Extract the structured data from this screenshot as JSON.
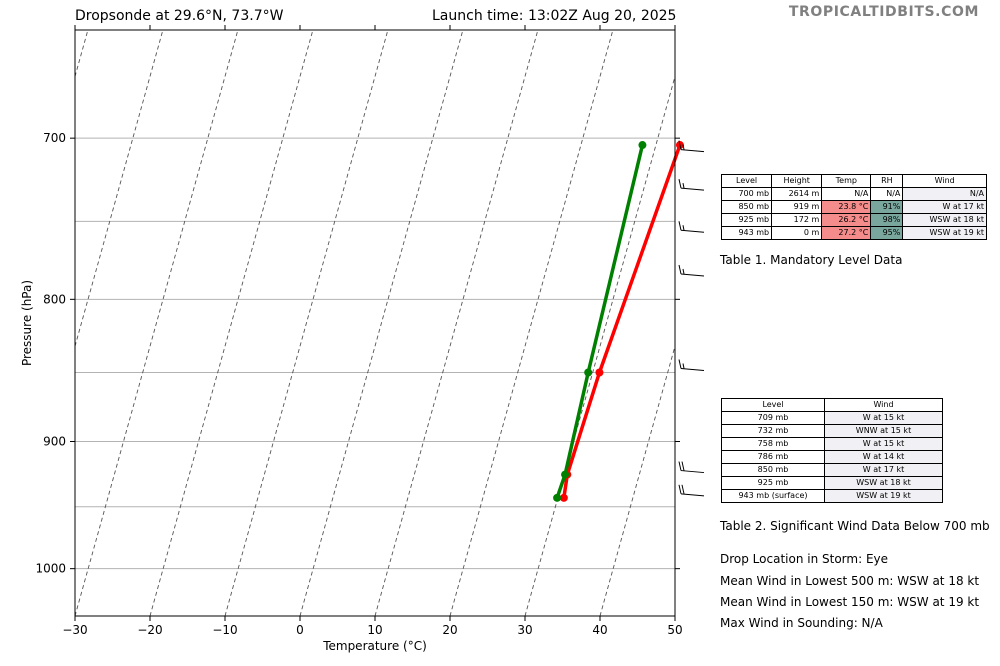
{
  "header": {
    "left_title": "Dropsonde at 29.6°N, 73.7°W",
    "right_title": "Launch time: 13:02Z Aug 20, 2025",
    "brand": "TROPICALTIDBITS.COM"
  },
  "chart_data": {
    "type": "line",
    "xlabel": "Temperature (°C)",
    "ylabel": "Pressure (hPa)",
    "xlim": [
      -30,
      50
    ],
    "ylim": [
      1040,
      640
    ],
    "y_scale": "log",
    "xticks": [
      -30,
      -20,
      -10,
      0,
      10,
      20,
      30,
      40,
      50
    ],
    "yticks": [
      700,
      800,
      900,
      1000
    ],
    "grid": "horizontal isobars at 700, 750, 800, 850, 900, 950, 1000 hPa; dashed skewed isotherms",
    "series": [
      {
        "color": "#ff0000",
        "points": [
          {
            "p": 943,
            "t": 30.8
          },
          {
            "p": 925,
            "t": 30.4
          },
          {
            "p": 850,
            "t": 30.9
          },
          {
            "p": 704,
            "t": 33.2
          }
        ]
      },
      {
        "color": "#008000",
        "points": [
          {
            "p": 943,
            "t": 29.9
          },
          {
            "p": 925,
            "t": 30.1
          },
          {
            "p": 850,
            "t": 29.4
          },
          {
            "p": 704,
            "t": 28.2
          }
        ]
      }
    ],
    "wind_barbs": [
      {
        "p": 709,
        "barbs": 1.5
      },
      {
        "p": 732,
        "barbs": 1.5
      },
      {
        "p": 758,
        "barbs": 1.5
      },
      {
        "p": 786,
        "barbs": 1.5
      },
      {
        "p": 850,
        "barbs": 1.5
      },
      {
        "p": 925,
        "barbs": 2
      },
      {
        "p": 943,
        "barbs": 2
      }
    ]
  },
  "table1": {
    "caption": "Table 1. Mandatory Level Data",
    "headers": [
      "Level",
      "Height",
      "Temp",
      "RH",
      "Wind"
    ],
    "rows": [
      [
        "700 mb",
        "2614 m",
        "N/A",
        "N/A",
        "N/A"
      ],
      [
        "850 mb",
        "919 m",
        "23.8 °C",
        "91%",
        "W at 17 kt"
      ],
      [
        "925 mb",
        "172 m",
        "26.2 °C",
        "98%",
        "WSW at 18 kt"
      ],
      [
        "943 mb",
        "0 m",
        "27.2 °C",
        "95%",
        "WSW at 19 kt"
      ]
    ],
    "temp_color": "#f58c8c",
    "rh_color": "#7aa79d"
  },
  "table2": {
    "caption": "Table 2. Significant Wind Data Below 700 mb",
    "headers": [
      "Level",
      "Wind"
    ],
    "rows": [
      [
        "709 mb",
        "W at 15 kt"
      ],
      [
        "732 mb",
        "WNW at 15 kt"
      ],
      [
        "758 mb",
        "W at 15 kt"
      ],
      [
        "786 mb",
        "W at 14 kt"
      ],
      [
        "850 mb",
        "W at 17 kt"
      ],
      [
        "925 mb",
        "WSW at 18 kt"
      ],
      [
        "943 mb (surface)",
        "WSW at 19 kt"
      ]
    ]
  },
  "info": [
    "Drop Location in Storm: Eye",
    "Mean Wind in Lowest 500 m:  WSW at 18 kt",
    "Mean Wind in Lowest 150 m:  WSW at 19 kt",
    "Max Wind in Sounding:  N/A"
  ]
}
